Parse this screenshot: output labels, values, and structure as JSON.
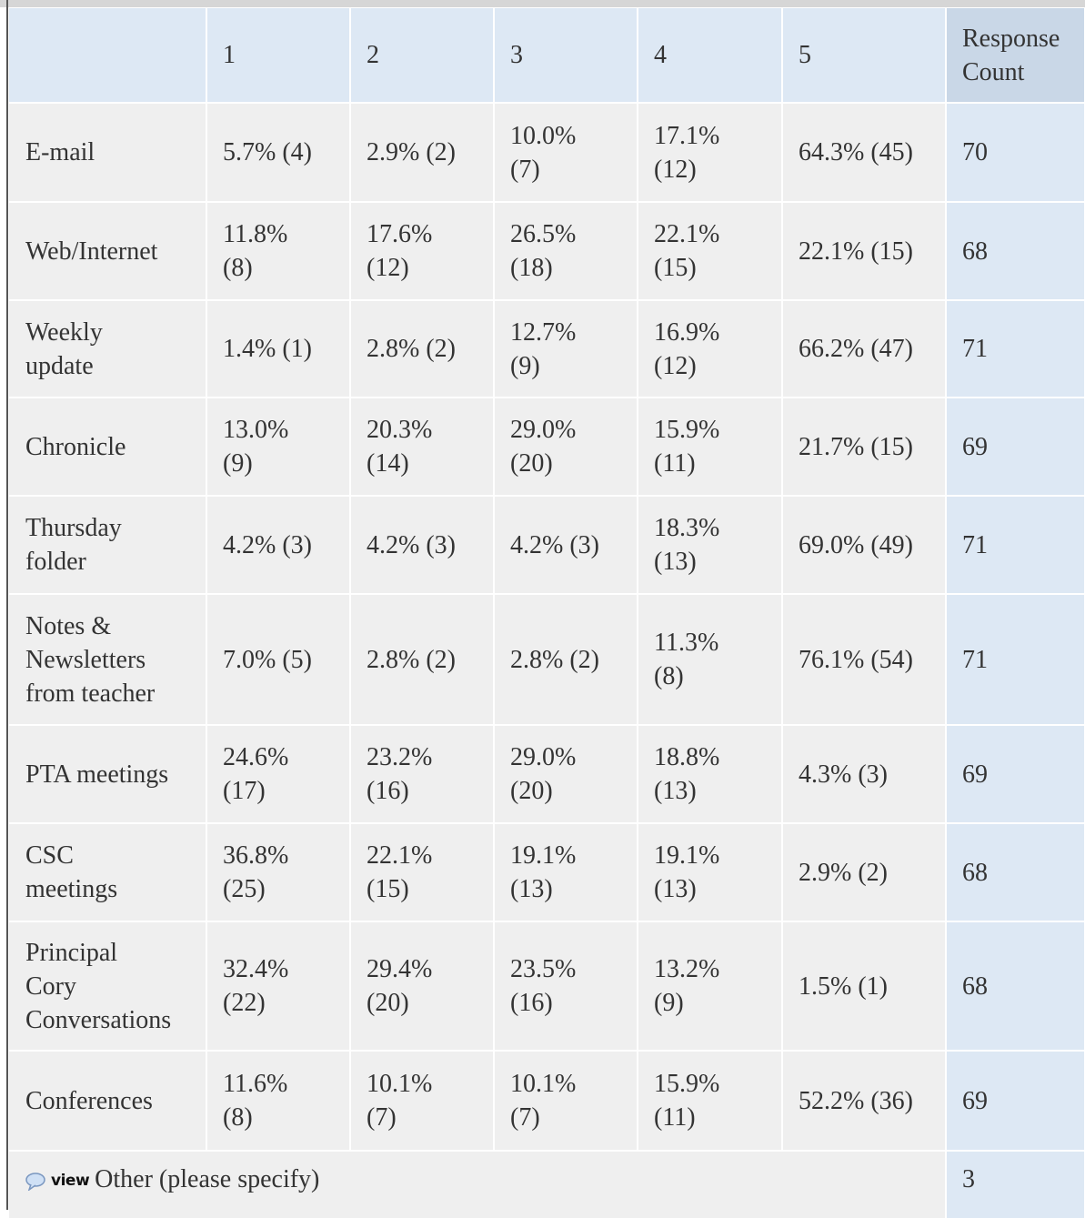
{
  "table": {
    "columns": [
      "1",
      "2",
      "3",
      "4",
      "5"
    ],
    "count_header": "Response Count",
    "rows": [
      {
        "label": "E-mail",
        "cells": [
          "5.7% (4)",
          "2.9% (2)",
          "10.0% (7)",
          "17.1% (12)",
          "64.3% (45)"
        ],
        "count": 70
      },
      {
        "label": "Web/Internet",
        "cells": [
          "11.8% (8)",
          "17.6% (12)",
          "26.5% (18)",
          "22.1% (15)",
          "22.1% (15)"
        ],
        "count": 68
      },
      {
        "label": "Weekly update",
        "cells": [
          "1.4% (1)",
          "2.8% (2)",
          "12.7% (9)",
          "16.9% (12)",
          "66.2% (47)"
        ],
        "count": 71
      },
      {
        "label": "Chronicle",
        "cells": [
          "13.0% (9)",
          "20.3% (14)",
          "29.0% (20)",
          "15.9% (11)",
          "21.7% (15)"
        ],
        "count": 69
      },
      {
        "label": "Thursday folder",
        "cells": [
          "4.2% (3)",
          "4.2% (3)",
          "4.2% (3)",
          "18.3% (13)",
          "69.0% (49)"
        ],
        "count": 71
      },
      {
        "label": "Notes & Newsletters from teacher",
        "cells": [
          "7.0% (5)",
          "2.8% (2)",
          "2.8% (2)",
          "11.3% (8)",
          "76.1% (54)"
        ],
        "count": 71
      },
      {
        "label": "PTA meetings",
        "cells": [
          "24.6% (17)",
          "23.2% (16)",
          "29.0% (20)",
          "18.8% (13)",
          "4.3% (3)"
        ],
        "count": 69
      },
      {
        "label": "CSC meetings",
        "cells": [
          "36.8% (25)",
          "22.1% (15)",
          "19.1% (13)",
          "19.1% (13)",
          "2.9% (2)"
        ],
        "count": 68
      },
      {
        "label": "Principal Cory Conversations",
        "cells": [
          "32.4% (22)",
          "29.4% (20)",
          "23.5% (16)",
          "13.2% (9)",
          "1.5% (1)"
        ],
        "count": 68
      },
      {
        "label": "Conferences",
        "cells": [
          "11.6% (8)",
          "10.1% (7)",
          "10.1% (7)",
          "15.9% (11)",
          "52.2% (36)"
        ],
        "count": 69
      }
    ],
    "other": {
      "icon_label": "view",
      "label": "Other (please specify)",
      "count": 3
    }
  }
}
